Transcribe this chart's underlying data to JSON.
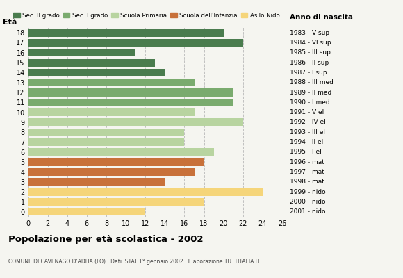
{
  "ages": [
    18,
    17,
    16,
    15,
    14,
    13,
    12,
    11,
    10,
    9,
    8,
    7,
    6,
    5,
    4,
    3,
    2,
    1,
    0
  ],
  "values": [
    20,
    22,
    11,
    13,
    14,
    17,
    21,
    21,
    17,
    22,
    16,
    16,
    19,
    18,
    17,
    14,
    24,
    18,
    12
  ],
  "years_by_age": {
    "18": "1983 - V sup",
    "17": "1984 - VI sup",
    "16": "1985 - III sup",
    "15": "1986 - II sup",
    "14": "1987 - I sup",
    "13": "1988 - III med",
    "12": "1989 - II med",
    "11": "1990 - I med",
    "10": "1991 - V el",
    "9": "1992 - IV el",
    "8": "1993 - III el",
    "7": "1994 - II el",
    "6": "1995 - I el",
    "5": "1996 - mat",
    "4": "1997 - mat",
    "3": "1998 - mat",
    "2": "1999 - nido",
    "1": "2000 - nido",
    "0": "2001 - nido"
  },
  "categories": {
    "Sec. II grado": {
      "ages": [
        18,
        17,
        16,
        15,
        14
      ],
      "color": "#4a7c4e"
    },
    "Sec. I grado": {
      "ages": [
        13,
        12,
        11
      ],
      "color": "#7aab6e"
    },
    "Scuola Primaria": {
      "ages": [
        10,
        9,
        8,
        7,
        6
      ],
      "color": "#b8d4a0"
    },
    "Scuola dell'Infanzia": {
      "ages": [
        5,
        4,
        3
      ],
      "color": "#c8713a"
    },
    "Asilo Nido": {
      "ages": [
        2,
        1,
        0
      ],
      "color": "#f5d57a"
    }
  },
  "title": "Popolazione per età scolastica - 2002",
  "subtitle": "COMUNE DI CAVENAGO D'ADDA (LO) · Dati ISTAT 1° gennaio 2002 · Elaborazione TUTTITALIA.IT",
  "xlim": [
    0,
    26
  ],
  "xticks": [
    0,
    2,
    4,
    6,
    8,
    10,
    12,
    14,
    16,
    18,
    20,
    22,
    24,
    26
  ],
  "background_color": "#f5f5f0",
  "grid_color": "#bbbbbb",
  "bar_color_sec2": "#4a7c4e",
  "bar_color_sec1": "#7aab6e",
  "bar_color_prim": "#b8d4a0",
  "bar_color_inf": "#c8713a",
  "bar_color_nido": "#f5d57a"
}
